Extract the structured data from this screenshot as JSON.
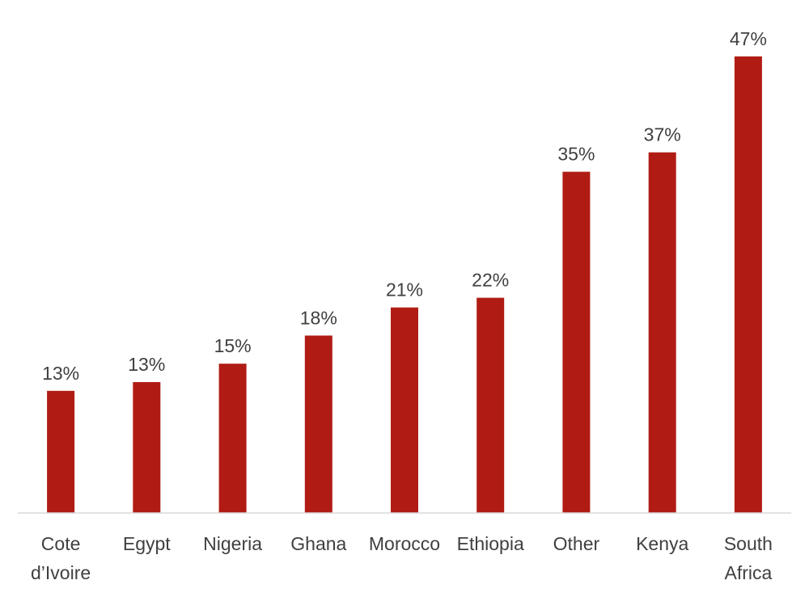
{
  "chart_data": {
    "type": "bar",
    "title": "",
    "xlabel": "",
    "ylabel": "",
    "categories": [
      [
        "Cote",
        "d’Ivoire"
      ],
      [
        "Egypt"
      ],
      [
        "Nigeria"
      ],
      [
        "Ghana"
      ],
      [
        "Morocco"
      ],
      [
        "Ethiopia"
      ],
      [
        "Other"
      ],
      [
        "Kenya"
      ],
      [
        "South",
        "Africa"
      ]
    ],
    "values": [
      12.6,
      13.5,
      15.4,
      18.3,
      21.2,
      22.2,
      35.2,
      37.2,
      47.1
    ],
    "value_labels": [
      "13%",
      "13%",
      "15%",
      "18%",
      "21%",
      "22%",
      "35%",
      "37%",
      "47%"
    ],
    "ylim": [
      0,
      50
    ],
    "grid": false,
    "legend": "none",
    "colors": {
      "bar": "#B01C14",
      "axis": "#D9D9D9",
      "text": "#404040"
    }
  }
}
